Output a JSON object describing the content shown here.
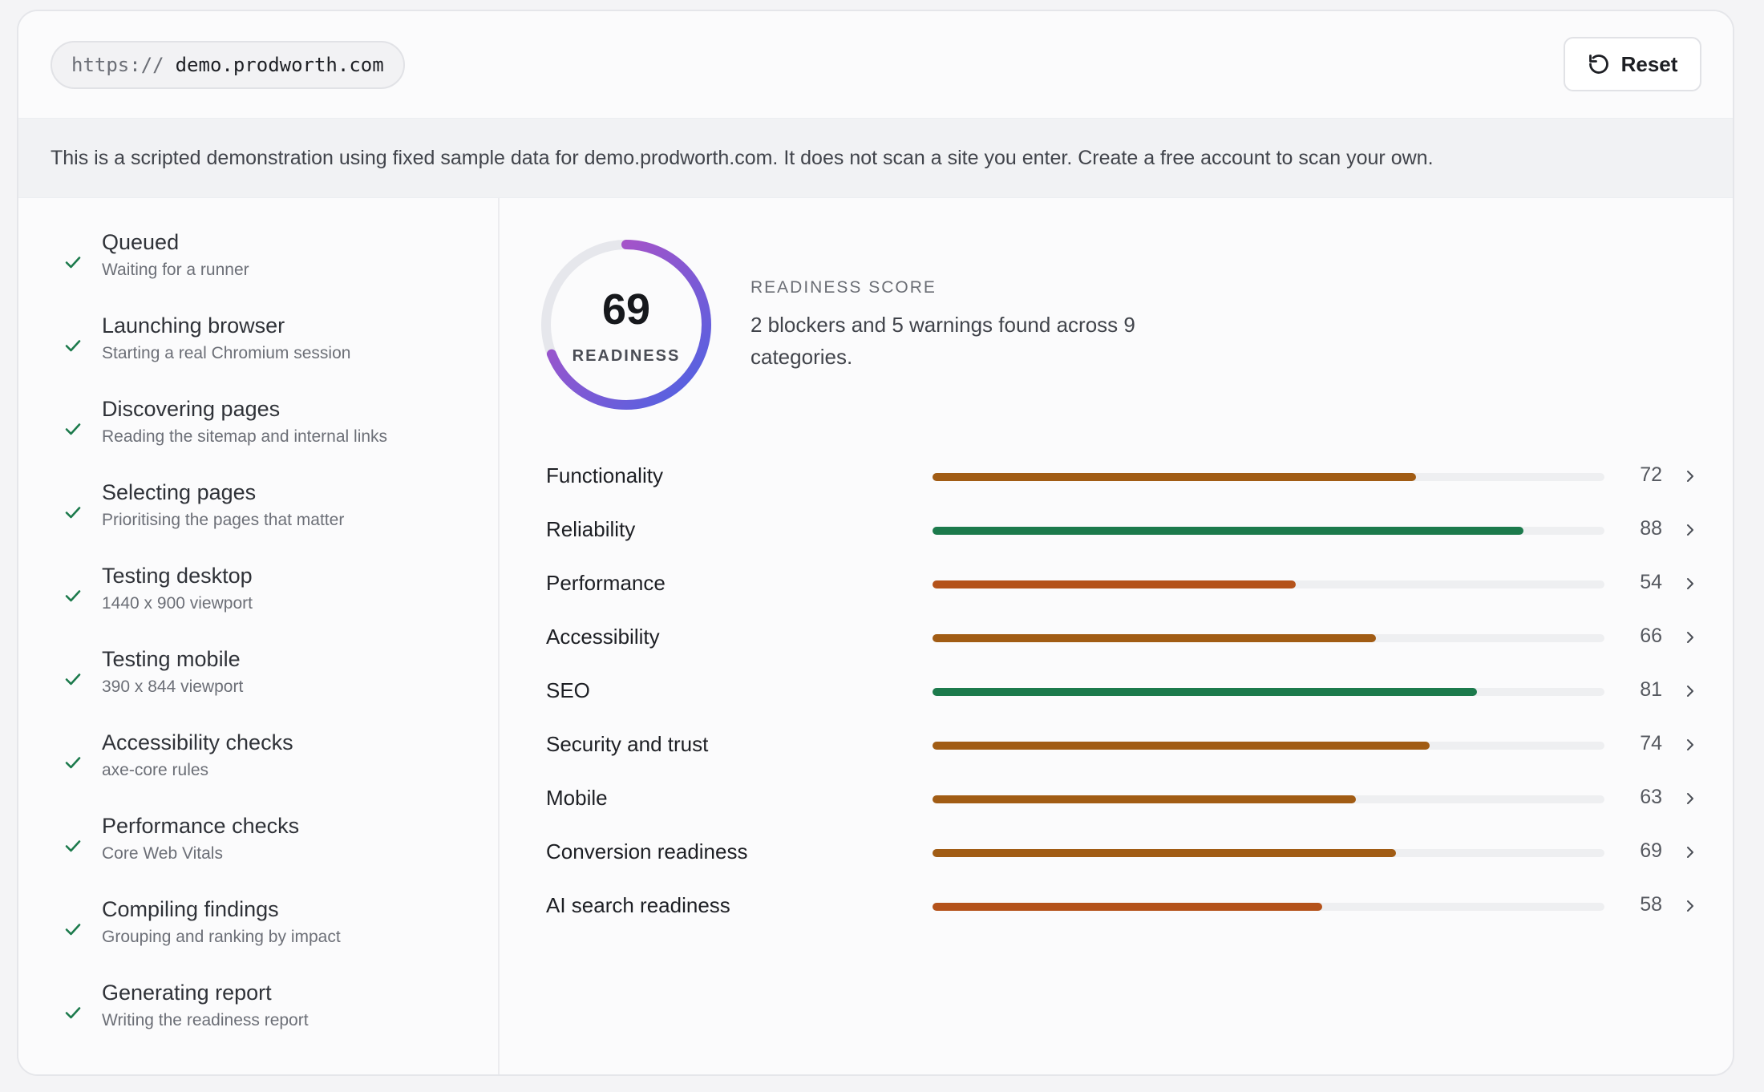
{
  "header": {
    "url_scheme": "https://",
    "url_host": "demo.prodworth.com",
    "reset_label": "Reset",
    "reset_icon": "rotate-ccw-icon"
  },
  "notice": "This is a scripted demonstration using fixed sample data for demo.prodworth.com. It does not scan a site you enter. Create a free account to scan your own.",
  "steps": [
    {
      "title": "Queued",
      "subtitle": "Waiting for a runner"
    },
    {
      "title": "Launching browser",
      "subtitle": "Starting a real Chromium session"
    },
    {
      "title": "Discovering pages",
      "subtitle": "Reading the sitemap and internal links"
    },
    {
      "title": "Selecting pages",
      "subtitle": "Prioritising the pages that matter"
    },
    {
      "title": "Testing desktop",
      "subtitle": "1440 x 900 viewport"
    },
    {
      "title": "Testing mobile",
      "subtitle": "390 x 844 viewport"
    },
    {
      "title": "Accessibility checks",
      "subtitle": "axe-core rules"
    },
    {
      "title": "Performance checks",
      "subtitle": "Core Web Vitals"
    },
    {
      "title": "Compiling findings",
      "subtitle": "Grouping and ranking by impact"
    },
    {
      "title": "Generating report",
      "subtitle": "Writing the readiness report"
    }
  ],
  "score": {
    "value": "69",
    "label": "READINESS",
    "eyebrow": "READINESS SCORE",
    "summary": "2 blockers and 5 warnings found across 9 categories.",
    "gauge_fraction": 0.69
  },
  "categories": [
    {
      "name": "Functionality",
      "score": 72
    },
    {
      "name": "Reliability",
      "score": 88
    },
    {
      "name": "Performance",
      "score": 54
    },
    {
      "name": "Accessibility",
      "score": 66
    },
    {
      "name": "SEO",
      "score": 81
    },
    {
      "name": "Security and trust",
      "score": 74
    },
    {
      "name": "Mobile",
      "score": 63
    },
    {
      "name": "Conversion readiness",
      "score": 69
    },
    {
      "name": "AI search readiness",
      "score": 58
    }
  ],
  "colors": {
    "good": "#1c7a4c",
    "warn": "#a15c14",
    "poor": "#b4521a",
    "check": "#1c7a4c",
    "gauge_start": "#4b63e4",
    "gauge_end": "#c04ec0"
  }
}
